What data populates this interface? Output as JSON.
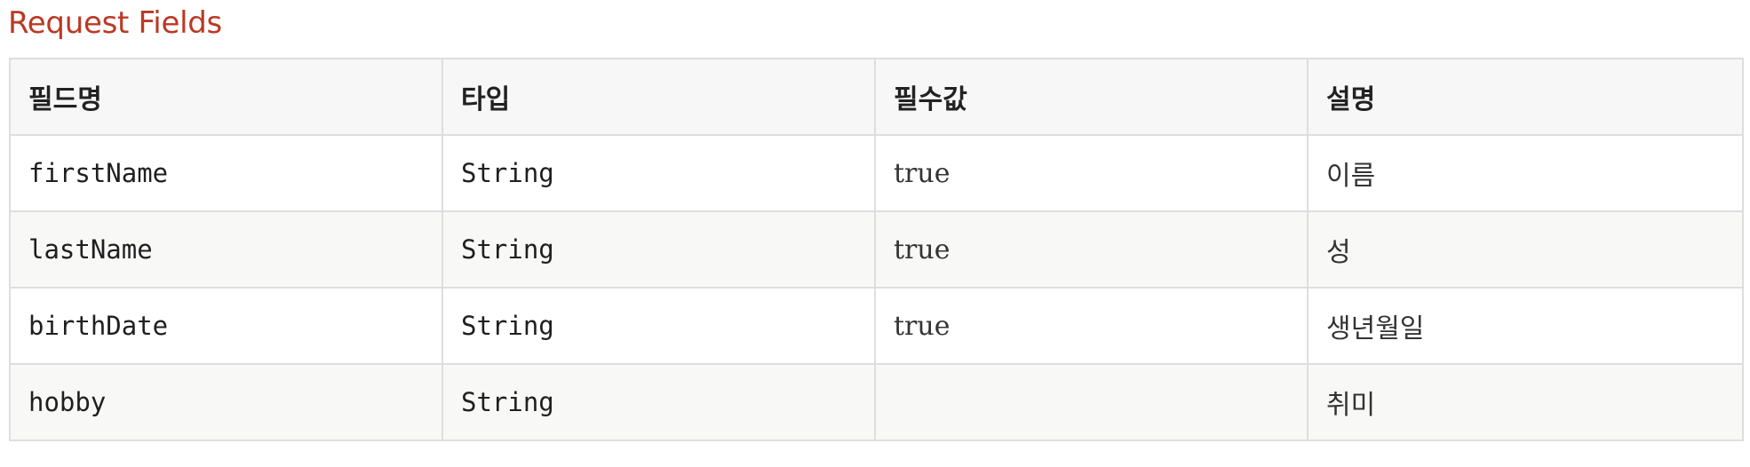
{
  "section": {
    "title": "Request Fields"
  },
  "table": {
    "headers": [
      "필드명",
      "타입",
      "필수값",
      "설명"
    ],
    "rows": [
      {
        "name": "firstName",
        "type": "String",
        "required": "true",
        "description": "이름"
      },
      {
        "name": "lastName",
        "type": "String",
        "required": "true",
        "description": "성"
      },
      {
        "name": "birthDate",
        "type": "String",
        "required": "true",
        "description": "생년월일"
      },
      {
        "name": "hobby",
        "type": "String",
        "required": "",
        "description": "취미"
      }
    ]
  },
  "colors": {
    "title": "#ba3925",
    "border": "#dedede",
    "header_bg": "#f7f7f8",
    "stripe_bg": "#f8f8f7"
  }
}
